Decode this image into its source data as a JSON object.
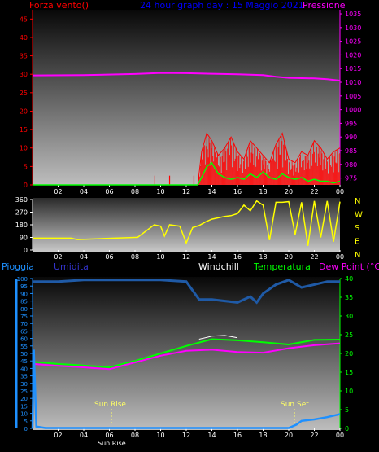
{
  "colors": {
    "wind": "#ff0000",
    "gust": "#00ff00",
    "pressure": "#ff00ff",
    "direction": "#ffff00",
    "rain": "#1e90ff",
    "humidity": "#1f5aa6",
    "temperature": "#00ff00",
    "dewpoint": "#ff00ff",
    "windchill": "#ffffff",
    "title": "#0000ff",
    "hum_label": "#3333cc",
    "sun": "#ffff66"
  },
  "header": {
    "wind_label": "Forza vento()",
    "title": "24 hour graph day : 15 Maggio 2021",
    "pressure_label": "Pressione"
  },
  "lower": {
    "rain_label": "Pioggia",
    "humidity_label": "Umidita",
    "windchill_label": "Windchill",
    "temperature_label": "Temperatura",
    "dewpoint_label": "Dew Point (°C)",
    "sunrise_label": "Sun Rise",
    "sunset_label": "Sun Set",
    "sunrise_tick": "Sun Rise"
  },
  "chart_data": [
    {
      "type": "line",
      "title": "24 hour graph day : 15 Maggio 2021",
      "x_ticks": [
        "02",
        "04",
        "06",
        "08",
        "10",
        "12",
        "14",
        "16",
        "18",
        "20",
        "22",
        "00"
      ],
      "y_left_ticks": [
        "0",
        "5",
        "10",
        "15",
        "20",
        "25",
        "30",
        "35",
        "40",
        "45"
      ],
      "y_right_ticks": [
        "975",
        "980",
        "985",
        "990",
        "995",
        "1000",
        "1005",
        "1010",
        "1015",
        "1020",
        "1025",
        "1030",
        "1035"
      ],
      "y_left_range": [
        0,
        47.5
      ],
      "y_right_range": [
        972.5,
        1036.5
      ],
      "grid": false,
      "series": [
        {
          "name": "Forza vento()",
          "axis": "left",
          "x": [
            0,
            12.9,
            13.2,
            13.6,
            14,
            14.5,
            15,
            15.5,
            16,
            16.5,
            17,
            17.5,
            18,
            18.5,
            19,
            19.5,
            20,
            20.5,
            21,
            21.5,
            22,
            22.5,
            23,
            23.5,
            24
          ],
          "y": [
            0,
            0,
            9,
            14,
            12,
            8,
            10,
            13,
            9,
            7,
            12,
            10,
            8,
            6,
            11,
            14,
            7,
            6,
            9,
            8,
            12,
            10,
            7,
            9,
            10
          ]
        },
        {
          "axis": "left",
          "x": [
            0,
            12.9,
            13.2,
            13.6,
            14,
            14.5,
            15,
            15.5,
            16,
            16.5,
            17,
            17.5,
            18,
            18.5,
            19,
            19.5,
            20,
            20.5,
            21,
            21.5,
            22,
            22.5,
            23,
            23.5,
            24
          ],
          "y": [
            0,
            0,
            2,
            5,
            6,
            3,
            2,
            1.5,
            2,
            1.5,
            3,
            2,
            3.5,
            2,
            1.5,
            3,
            2,
            1.5,
            2,
            1,
            1.5,
            1,
            1,
            0.5,
            1
          ]
        },
        {
          "name": "Pressione",
          "axis": "right",
          "x": [
            0,
            4,
            8,
            10,
            12,
            14,
            16,
            18,
            19,
            20,
            22,
            23,
            24
          ],
          "y": [
            1012.5,
            1012.6,
            1013.0,
            1013.4,
            1013.3,
            1013.1,
            1012.9,
            1012.6,
            1012.0,
            1011.6,
            1011.4,
            1011.1,
            1010.6
          ]
        }
      ]
    },
    {
      "type": "line",
      "x_ticks": [
        "02",
        "04",
        "06",
        "08",
        "10",
        "12",
        "14",
        "16",
        "18",
        "20",
        "22",
        "00"
      ],
      "y_left_ticks": [
        "0",
        "90",
        "180",
        "270",
        "360"
      ],
      "y_right_ticks": [
        "N",
        "W",
        "S",
        "E",
        "N"
      ],
      "y_range": [
        0,
        360
      ],
      "series": [
        {
          "axis": "left",
          "x": [
            0,
            3,
            3.5,
            8,
            8.2,
            9.5,
            10,
            10.3,
            10.7,
            11.5,
            12,
            12.5,
            13,
            13.5,
            14,
            15,
            15.5,
            16,
            16.5,
            17,
            17.5,
            18,
            18.5,
            19,
            19.5,
            20,
            20.5,
            21,
            21.5,
            22,
            22.5,
            23,
            23.5,
            24
          ],
          "y": [
            85,
            85,
            75,
            90,
            90,
            180,
            170,
            100,
            180,
            170,
            50,
            160,
            175,
            200,
            220,
            240,
            245,
            260,
            320,
            280,
            350,
            320,
            70,
            340,
            340,
            345,
            110,
            340,
            30,
            350,
            90,
            350,
            60,
            345
          ]
        }
      ]
    },
    {
      "type": "line",
      "x_ticks": [
        "02",
        "04",
        "06",
        "08",
        "10",
        "12",
        "14",
        "16",
        "18",
        "20",
        "22",
        "00"
      ],
      "y_left_ticks": [
        "0",
        "5",
        "10",
        "15",
        "20",
        "25",
        "30",
        "35",
        "40",
        "45",
        "50",
        "55",
        "60",
        "65",
        "70",
        "75",
        "80",
        "85",
        "90",
        "95",
        "100"
      ],
      "y_right_ticks": [
        "0",
        "5",
        "10",
        "15",
        "20",
        "25",
        "30",
        "35",
        "40"
      ],
      "y_left_range": [
        0,
        100
      ],
      "y_right_range": [
        0,
        40
      ],
      "series": [
        {
          "name": "Umidita",
          "axis": "left",
          "x": [
            0,
            2,
            4,
            6,
            8,
            10,
            12,
            13,
            14,
            16,
            17,
            17.5,
            18,
            19,
            20,
            21,
            22,
            23,
            24
          ],
          "y": [
            98,
            98,
            99,
            99,
            99,
            99,
            98,
            86,
            86,
            84,
            88,
            84,
            90,
            96,
            99,
            94,
            96,
            98,
            98
          ]
        },
        {
          "name": "Temperatura",
          "axis": "right",
          "x": [
            0,
            2,
            4,
            6,
            8,
            10,
            12,
            14,
            16,
            18,
            20,
            22,
            24
          ],
          "y": [
            17.8,
            17.2,
            16.8,
            16.3,
            18.0,
            20.0,
            22.0,
            23.8,
            23.5,
            23.0,
            22.4,
            23.6,
            23.7
          ]
        },
        {
          "name": "Dew Point (°C)",
          "axis": "right",
          "x": [
            0,
            2,
            4,
            6,
            8,
            10,
            12,
            14,
            16,
            18,
            20,
            22,
            24
          ],
          "y": [
            17.2,
            16.7,
            16.3,
            15.8,
            17.6,
            19.4,
            20.7,
            21.0,
            20.4,
            20.2,
            21.4,
            22.2,
            22.7
          ]
        },
        {
          "name": "Windchill",
          "axis": "right",
          "x": [
            13,
            14,
            15,
            16
          ],
          "y": [
            23.8,
            24.6,
            24.8,
            24.2
          ]
        },
        {
          "name": "Pioggia",
          "axis": "right",
          "x": [
            0,
            0.1,
            0.3,
            1,
            20,
            20.6,
            21,
            22,
            23,
            24
          ],
          "y": [
            0,
            21,
            0.5,
            0.1,
            0.1,
            1.0,
            2.0,
            2.4,
            3.0,
            3.8
          ]
        }
      ]
    }
  ]
}
